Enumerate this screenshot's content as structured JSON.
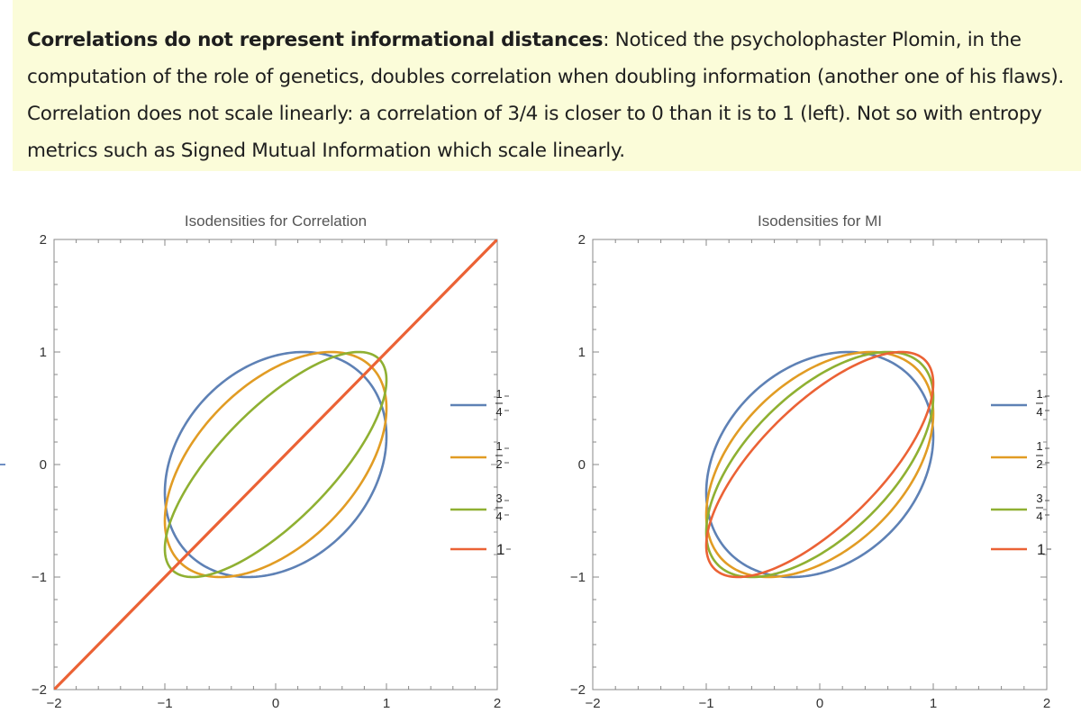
{
  "note": {
    "bold": "Correlations do not represent informational distances",
    "body": ": Noticed the  psycholophaster Plomin, in the computation of the  role  of genetics,  doubles correlation when doubling information (another one of his flaws). Correlation does not scale linearly: a correlation of 3/4 is closer to 0 than it is to 1 (left). Not so with entropy metrics such as  Signed Mutual Information which scale linearly."
  },
  "colors": {
    "c1": "#5e81b5",
    "c2": "#e19c24",
    "c3": "#8fb032",
    "c4": "#eb6235",
    "note_bg": "#fbfcd9",
    "axis": "#888888",
    "tick_text": "#333333"
  },
  "chart_data": [
    {
      "type": "line",
      "title": "Isodensities for Correlation",
      "xlabel": "",
      "ylabel": "",
      "xlim": [
        -2,
        2
      ],
      "ylim": [
        -2,
        2
      ],
      "x_ticks": [
        "-2",
        "-1",
        "0",
        "1",
        "2"
      ],
      "y_ticks": [
        "-2",
        "-1",
        "0",
        "1",
        "2"
      ],
      "legend_position": "right",
      "series": [
        {
          "name": "1/4",
          "rho": 0.25,
          "shape": "ellipse",
          "color_key": "c1",
          "legend": {
            "num": "1",
            "den": "4"
          }
        },
        {
          "name": "1/2",
          "rho": 0.5,
          "shape": "ellipse",
          "color_key": "c2",
          "legend": {
            "num": "1",
            "den": "2"
          }
        },
        {
          "name": "3/4",
          "rho": 0.75,
          "shape": "ellipse",
          "color_key": "c3",
          "legend": {
            "num": "3",
            "den": "4"
          }
        },
        {
          "name": "1",
          "rho": 1,
          "shape": "line",
          "color_key": "c4",
          "legend": {
            "whole": "1"
          }
        }
      ]
    },
    {
      "type": "line",
      "title": "Isodensities for MI",
      "xlabel": "",
      "ylabel": "",
      "xlim": [
        -2,
        2
      ],
      "ylim": [
        -2,
        2
      ],
      "x_ticks": [
        "-2",
        "-1",
        "0",
        "1",
        "2"
      ],
      "y_ticks": [
        "-2",
        "-1",
        "0",
        "1",
        "2"
      ],
      "legend_position": "right",
      "series": [
        {
          "name": "1/4",
          "rho": 0.25,
          "shape": "ellipse",
          "color_key": "c1",
          "legend": {
            "num": "1",
            "den": "4"
          }
        },
        {
          "name": "1/2",
          "rho": 0.45,
          "shape": "ellipse",
          "color_key": "c2",
          "legend": {
            "num": "1",
            "den": "2"
          }
        },
        {
          "name": "3/4",
          "rho": 0.6,
          "shape": "ellipse",
          "color_key": "c3",
          "legend": {
            "num": "3",
            "den": "4"
          }
        },
        {
          "name": "1",
          "rho": 0.72,
          "shape": "ellipse",
          "color_key": "c4",
          "legend": {
            "whole": "1"
          }
        }
      ]
    }
  ]
}
